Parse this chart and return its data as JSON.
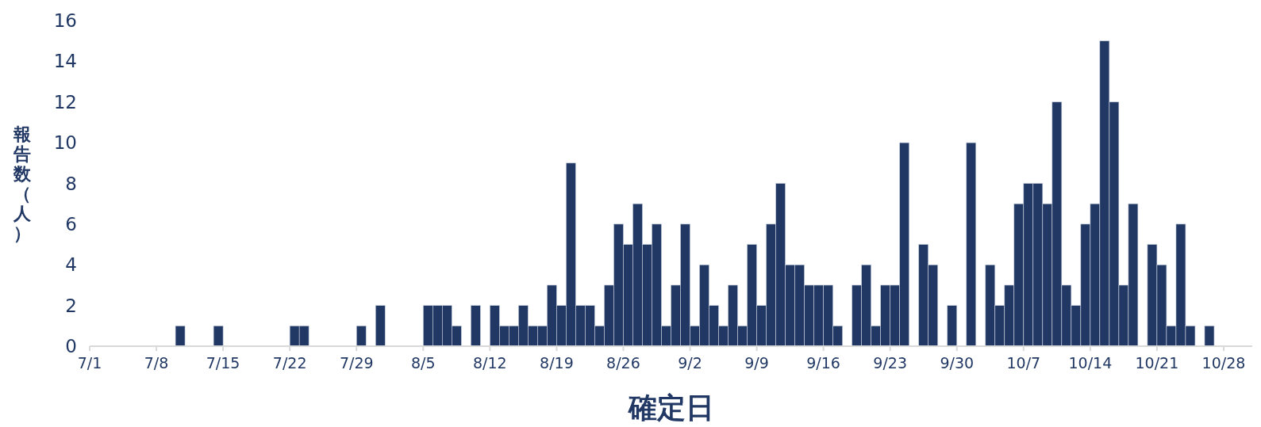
{
  "chart_data": {
    "type": "bar",
    "xlabel": "確定日",
    "ylabel": "報告数（人）",
    "color": "#213864",
    "x": [
      "--07-10",
      "--07-14",
      "--07-22",
      "--07-23",
      "--07-29",
      "--07-31",
      "--08-05",
      "--08-06",
      "--08-07",
      "--08-08",
      "--08-10",
      "--08-12",
      "--08-13",
      "--08-14",
      "--08-15",
      "--08-16",
      "--08-17",
      "--08-18",
      "--08-19",
      "--08-20",
      "--08-21",
      "--08-22",
      "--08-23",
      "--08-24",
      "--08-25",
      "--08-26",
      "--08-27",
      "--08-28",
      "--08-29",
      "--08-30",
      "--08-31",
      "--09-01",
      "--09-02",
      "--09-03",
      "--09-04",
      "--09-05",
      "--09-06",
      "--09-07",
      "--09-08",
      "--09-09",
      "--09-10",
      "--09-11",
      "--09-12",
      "--09-13",
      "--09-14",
      "--09-15",
      "--09-16",
      "--09-17",
      "--09-19",
      "--09-20",
      "--09-21",
      "--09-22",
      "--09-23",
      "--09-24",
      "--09-26",
      "--09-27",
      "--09-29",
      "--10-01",
      "--10-03",
      "--10-04",
      "--10-05",
      "--10-06",
      "--10-07",
      "--10-08",
      "--10-09",
      "--10-10",
      "--10-11",
      "--10-12",
      "--10-13",
      "--10-14",
      "--10-15",
      "--10-16",
      "--10-17",
      "--10-18",
      "--10-20",
      "--10-21",
      "--10-22",
      "--10-23",
      "--10-24",
      "--10-26"
    ],
    "values": [
      1,
      1,
      1,
      1,
      1,
      2,
      2,
      2,
      2,
      1,
      2,
      2,
      1,
      1,
      2,
      1,
      1,
      3,
      2,
      9,
      2,
      2,
      1,
      3,
      6,
      5,
      7,
      5,
      6,
      1,
      3,
      6,
      1,
      4,
      2,
      1,
      3,
      1,
      5,
      2,
      6,
      8,
      4,
      4,
      3,
      3,
      3,
      1,
      3,
      4,
      1,
      3,
      3,
      10,
      5,
      4,
      2,
      10,
      4,
      2,
      3,
      7,
      8,
      8,
      7,
      12,
      3,
      2,
      6,
      7,
      15,
      12,
      3,
      7,
      5,
      4,
      1,
      6,
      1,
      1
    ],
    "xlim": [
      "--07-01",
      "--10-31"
    ],
    "xticks": [
      {
        "value": "--07-01",
        "label": "7/1"
      },
      {
        "value": "--07-08",
        "label": "7/8"
      },
      {
        "value": "--07-15",
        "label": "7/15"
      },
      {
        "value": "--07-22",
        "label": "7/22"
      },
      {
        "value": "--07-29",
        "label": "7/29"
      },
      {
        "value": "--08-05",
        "label": "8/5"
      },
      {
        "value": "--08-12",
        "label": "8/12"
      },
      {
        "value": "--08-19",
        "label": "8/19"
      },
      {
        "value": "--08-26",
        "label": "8/26"
      },
      {
        "value": "--09-02",
        "label": "9/2"
      },
      {
        "value": "--09-09",
        "label": "9/9"
      },
      {
        "value": "--09-16",
        "label": "9/16"
      },
      {
        "value": "--09-23",
        "label": "9/23"
      },
      {
        "value": "--09-30",
        "label": "9/30"
      },
      {
        "value": "--10-07",
        "label": "10/7"
      },
      {
        "value": "--10-14",
        "label": "10/14"
      },
      {
        "value": "--10-21",
        "label": "10/21"
      },
      {
        "value": "--10-28",
        "label": "10/28"
      }
    ],
    "ylim": [
      0,
      16
    ],
    "yticks": [
      0,
      2,
      4,
      6,
      8,
      10,
      12,
      14,
      16
    ],
    "grid": false
  }
}
